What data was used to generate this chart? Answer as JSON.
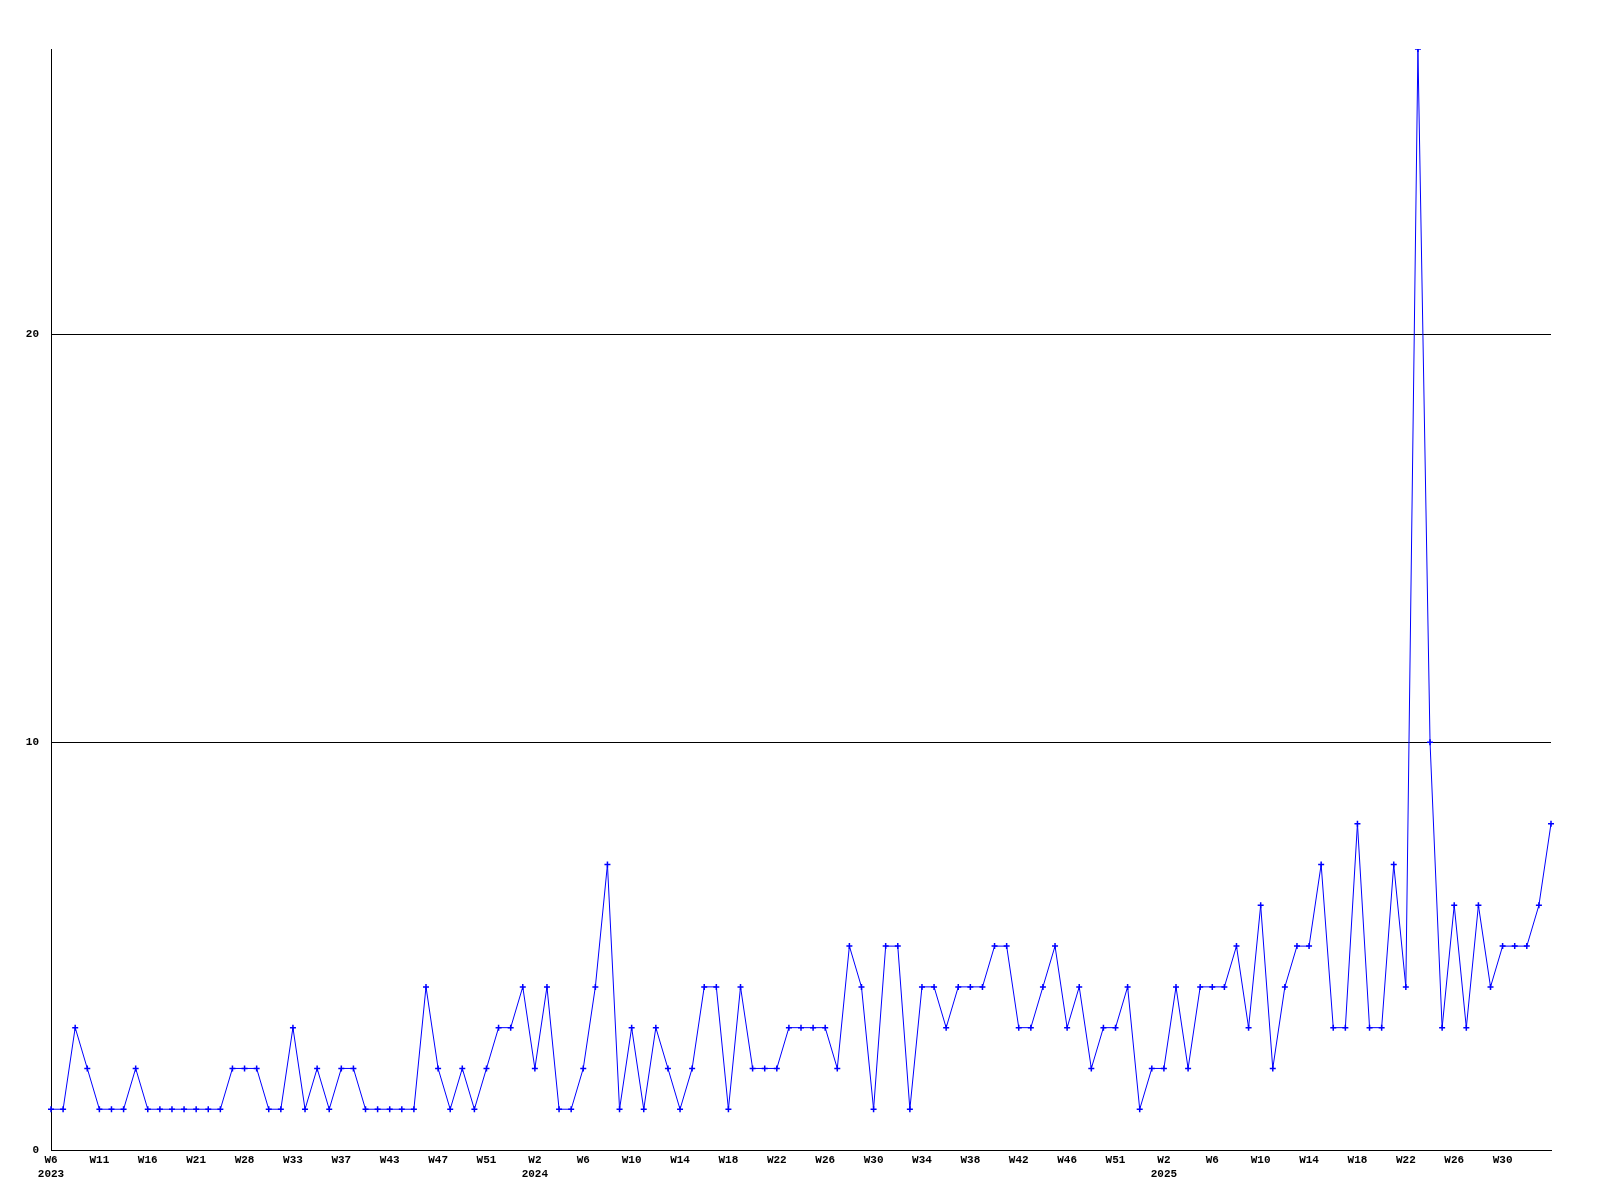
{
  "chart_data": {
    "type": "line",
    "categories": [
      "W6\n2023",
      null,
      null,
      null,
      "W11",
      null,
      null,
      null,
      "W16",
      null,
      null,
      null,
      "W21",
      null,
      null,
      null,
      "W28",
      null,
      null,
      null,
      "W33",
      null,
      null,
      null,
      "W37",
      null,
      null,
      null,
      "W43",
      null,
      null,
      null,
      "W47",
      null,
      null,
      null,
      "W51",
      null,
      null,
      null,
      "W2\n2024",
      null,
      null,
      null,
      "W6",
      null,
      null,
      null,
      "W10",
      null,
      null,
      null,
      "W14",
      null,
      null,
      null,
      "W18",
      null,
      null,
      null,
      "W22",
      null,
      null,
      null,
      "W26",
      null,
      null,
      null,
      "W30",
      null,
      null,
      null,
      "W34",
      null,
      null,
      null,
      "W38",
      null,
      null,
      null,
      "W42",
      null,
      null,
      null,
      "W46",
      null,
      null,
      null,
      "W51",
      null,
      null,
      null,
      "W2\n2025",
      null,
      null,
      null,
      "W6",
      null,
      null,
      null,
      "W10",
      null,
      null,
      null,
      "W14",
      null,
      null,
      null,
      "W18",
      null,
      null,
      null,
      "W22",
      null,
      null,
      null,
      "W26",
      null,
      null,
      null,
      "W30",
      null,
      null,
      null,
      null
    ],
    "values": [
      1,
      1,
      3,
      2,
      1,
      1,
      1,
      2,
      1,
      1,
      1,
      1,
      1,
      1,
      1,
      2,
      2,
      2,
      1,
      1,
      3,
      1,
      2,
      1,
      2,
      2,
      1,
      1,
      1,
      1,
      1,
      4,
      2,
      1,
      2,
      1,
      2,
      3,
      3,
      4,
      2,
      4,
      1,
      1,
      2,
      4,
      7,
      1,
      3,
      1,
      3,
      2,
      1,
      2,
      4,
      4,
      1,
      4,
      2,
      2,
      2,
      3,
      3,
      3,
      3,
      2,
      5,
      4,
      1,
      5,
      5,
      1,
      4,
      4,
      3,
      4,
      4,
      4,
      5,
      5,
      3,
      3,
      4,
      5,
      3,
      4,
      2,
      3,
      3,
      4,
      1,
      2,
      2,
      4,
      2,
      4,
      4,
      4,
      5,
      3,
      6,
      2,
      4,
      5,
      5,
      7,
      3,
      3,
      8,
      3,
      3,
      7,
      4,
      27,
      10,
      3,
      6,
      3,
      6,
      4,
      5,
      5,
      5,
      6,
      8
    ],
    "color": "#0000ff",
    "ylim": [
      0,
      27
    ],
    "yticks": [
      0,
      10,
      20
    ],
    "grid": "y",
    "marker": "cross",
    "line_style": "solid"
  }
}
